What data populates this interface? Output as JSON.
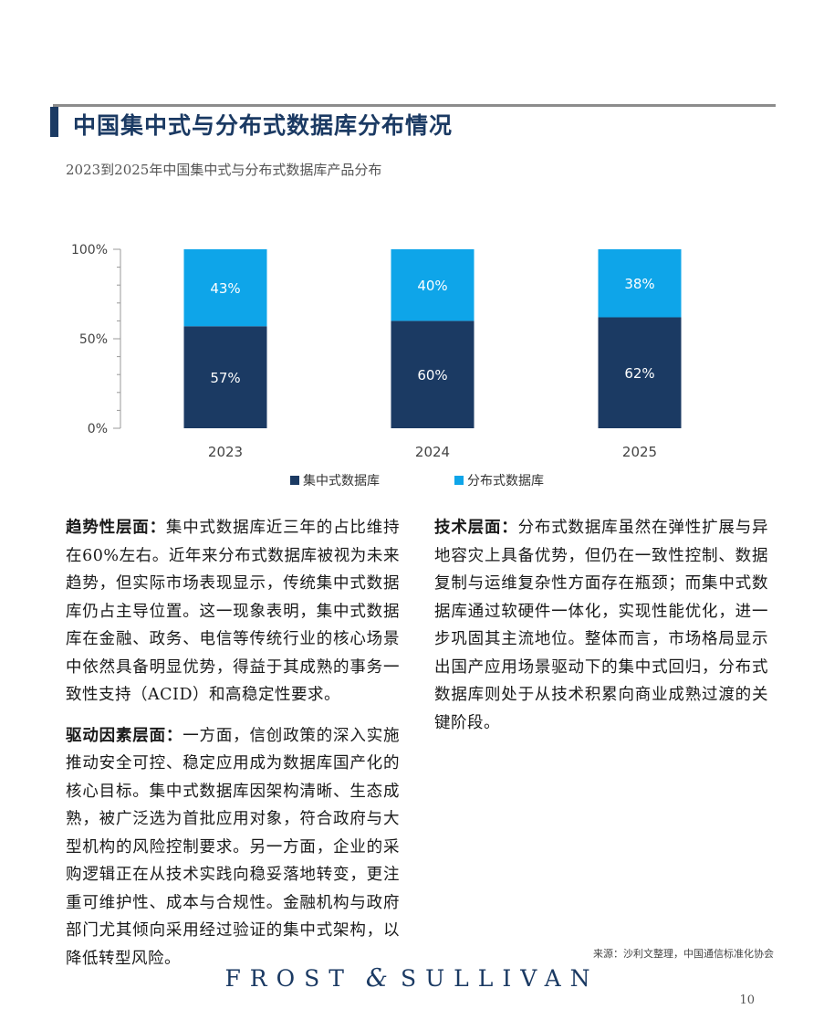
{
  "header": {
    "title": "中国集中式与分布式数据库分布情况",
    "subtitle": "2023到2025年中国集中式与分布式数据库产品分布"
  },
  "colors": {
    "centralized": "#1b3a63",
    "distributed": "#0ea5e9",
    "brand": "#1b3a63"
  },
  "chart_data": {
    "type": "bar",
    "stacked": true,
    "categories": [
      "2023",
      "2024",
      "2025"
    ],
    "series": [
      {
        "name": "集中式数据库",
        "values": [
          57,
          60,
          62
        ],
        "labels": [
          "57%",
          "60%",
          "62%"
        ]
      },
      {
        "name": "分布式数据库",
        "values": [
          43,
          40,
          38
        ],
        "labels": [
          "43%",
          "40%",
          "38%"
        ]
      }
    ],
    "ylim": [
      0,
      100
    ],
    "yticks": [
      "0%",
      "50%",
      "100%"
    ],
    "legend_position": "bottom",
    "grid": false
  },
  "body": {
    "p1_head": "趋势性层面：",
    "p1_text": "集中式数据库近三年的占比维持在60%左右。近年来分布式数据库被视为未来趋势，但实际市场表现显示，传统集中式数据库仍占主导位置。这一现象表明，集中式数据库在金融、政务、电信等传统行业的核心场景中依然具备明显优势，得益于其成熟的事务一致性支持（ACID）和高稳定性要求。",
    "p2_head": "驱动因素层面：",
    "p2_text": "一方面，信创政策的深入实施推动安全可控、稳定应用成为数据库国产化的核心目标。集中式数据库因架构清晰、生态成熟，被广泛选为首批应用对象，符合政府与大型机构的风险控制要求。另一方面，企业的采购逻辑正在从技术实践向稳妥落地转变，更注重可维护性、成本与合规性。金融机构与政府部门尤其倾向采用经过验证的集中式架构，以降低转型风险。",
    "p3_head": "技术层面：",
    "p3_text": "分布式数据库虽然在弹性扩展与异地容灾上具备优势，但仍在一致性控制、数据复制与运维复杂性方面存在瓶颈；而集中式数据库通过软硬件一体化，实现性能优化，进一步巩固其主流地位。整体而言，市场格局显示出国产应用场景驱动下的集中式回归，分布式数据库则处于从技术积累向商业成熟过渡的关键阶段。"
  },
  "footer": {
    "source": "来源：沙利文整理，中国通信标准化协会",
    "brand_left": "FROST",
    "brand_amp": "&",
    "brand_right": "SULLIVAN",
    "page_number": "10"
  }
}
